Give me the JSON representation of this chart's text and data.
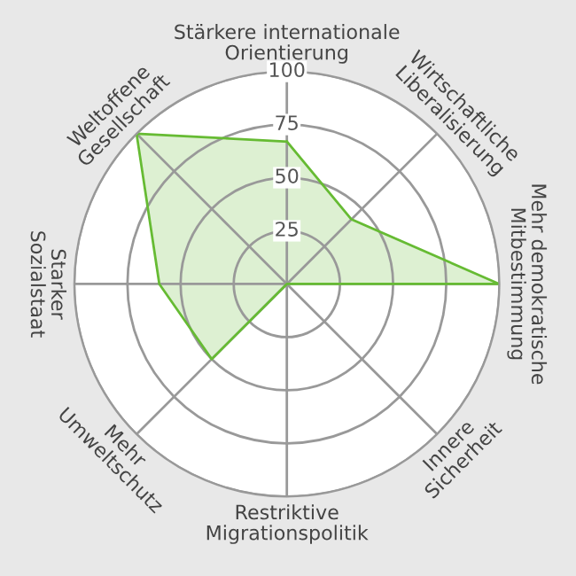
{
  "chart_data": {
    "type": "radar",
    "categories": [
      "Stärkere internationale\nOrientierung",
      "Wirtschaftliche\nLiberalisierung",
      "Mehr demokratische\nMitbestimmung",
      "Innere\nSicherheit",
      "Restriktive\nMigrationspolitik",
      "Mehr\nUmweltschutz",
      "Starker\nSozialstaat",
      "Weltoffene\nGesellschaft"
    ],
    "series": [
      {
        "color": "#66bb33",
        "values": [
          67,
          43,
          100,
          0,
          0,
          50,
          60,
          100
        ]
      }
    ],
    "ylim": [
      0,
      100
    ],
    "yticks": [
      25,
      50,
      75,
      100
    ],
    "grid": true,
    "marker": "none",
    "line_style": "solid"
  }
}
